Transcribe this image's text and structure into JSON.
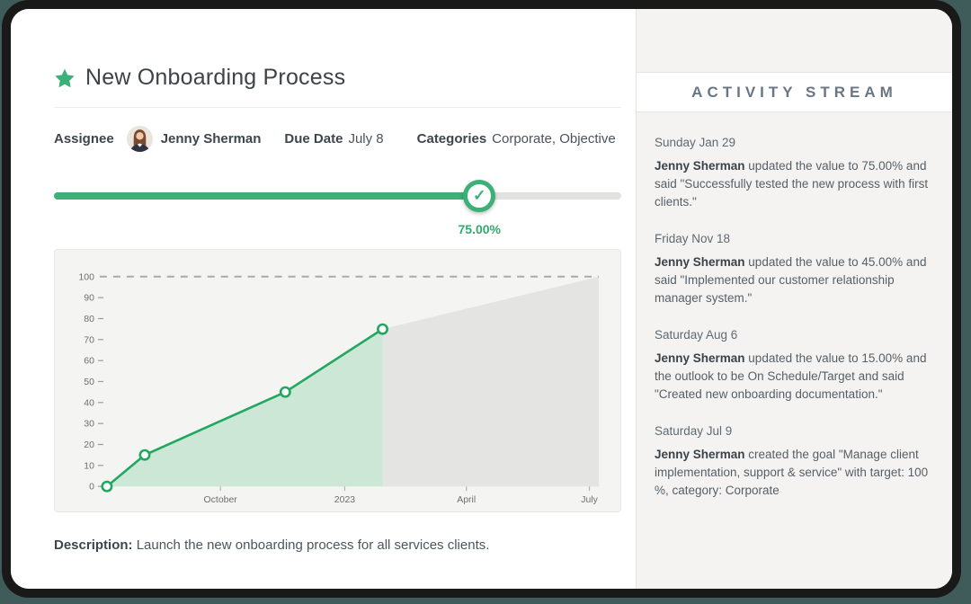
{
  "page": {
    "background_color": "#3f5c5b",
    "frame_color": "#191919"
  },
  "goal": {
    "title": "New Onboarding Process",
    "assignee_label": "Assignee",
    "assignee_name": "Jenny Sherman",
    "due_date_label": "Due Date",
    "due_date": "July 8",
    "categories_label": "Categories",
    "categories": "Corporate, Objective",
    "description_label": "Description:",
    "description": "Launch the new onboarding process for all services clients."
  },
  "progress": {
    "percent": 75,
    "percent_label": "75.00%",
    "accent_color": "#3bb077",
    "track_color": "#e2e2e0",
    "check_icon": "✓"
  },
  "chart_data": {
    "type": "area",
    "title": "",
    "xlabel": "",
    "ylabel": "",
    "ylim": [
      0,
      100
    ],
    "y_ticks": [
      0,
      10,
      20,
      30,
      40,
      50,
      60,
      70,
      80,
      90,
      100
    ],
    "x_domain_days": [
      0,
      364
    ],
    "x_ticks": [
      {
        "label": "October",
        "day": 84
      },
      {
        "label": "2023",
        "day": 176
      },
      {
        "label": "April",
        "day": 266
      },
      {
        "label": "July",
        "day": 357
      }
    ],
    "target_value": 100,
    "target_line_style": "dashed",
    "grid": false,
    "legend": "none",
    "series": [
      {
        "name": "actual-progress",
        "line_color": "#22a761",
        "fill_color": "#cde7d6",
        "marker": true,
        "points": [
          {
            "day": 0,
            "value": 0
          },
          {
            "day": 28,
            "value": 15
          },
          {
            "day": 132,
            "value": 45
          },
          {
            "day": 204,
            "value": 75
          }
        ]
      },
      {
        "name": "projection-to-target",
        "line_color": null,
        "fill_color": "#e4e4e2",
        "marker": false,
        "points": [
          {
            "day": 204,
            "value": 75
          },
          {
            "day": 364,
            "value": 100
          }
        ]
      }
    ]
  },
  "activity": {
    "header": "ACTIVITY STREAM",
    "entries": [
      {
        "date": "Sunday Jan 29",
        "author": "Jenny Sherman",
        "text": "updated the value to 75.00% and said \"Successfully tested the new process with first clients.\""
      },
      {
        "date": "Friday Nov 18",
        "author": "Jenny Sherman",
        "text": "updated the value to 45.00% and said \"Implemented our customer relationship manager system.\""
      },
      {
        "date": "Saturday Aug 6",
        "author": "Jenny Sherman",
        "text": "updated the value to 15.00% and the outlook to be On Schedule/Target and said \"Created new onboarding documentation.\""
      },
      {
        "date": "Saturday Jul 9",
        "author": "Jenny Sherman",
        "text": "created the goal \"Manage client implementation, support & service\" with target: 100 %, category: Corporate"
      }
    ]
  }
}
